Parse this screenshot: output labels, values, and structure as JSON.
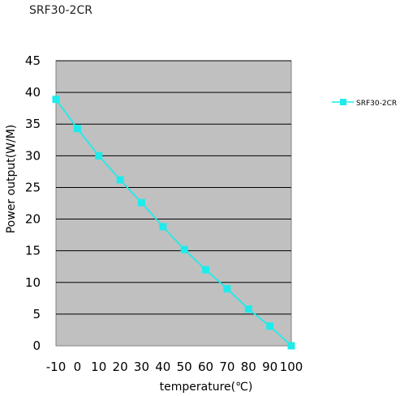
{
  "chart_data": {
    "type": "line",
    "title": "SRF30-2CR",
    "xlabel": "temperature(℃)",
    "ylabel": "Power output(W/M)",
    "x": [
      -10,
      0,
      10,
      20,
      30,
      40,
      50,
      60,
      70,
      80,
      90,
      100
    ],
    "xticks": [
      "-10",
      "0",
      "10",
      "20",
      "30",
      "40",
      "50",
      "60",
      "70",
      "80",
      "90",
      "100"
    ],
    "ylim": [
      0,
      45
    ],
    "yticks": [
      0,
      5,
      10,
      15,
      20,
      25,
      30,
      35,
      40,
      45
    ],
    "grid": true,
    "legend_position": "right",
    "series": [
      {
        "name": "SRF30-2CR",
        "color": "#1EEBEB",
        "marker": "square",
        "values": [
          38.9,
          34.3,
          30.0,
          26.2,
          22.6,
          18.8,
          15.2,
          12.0,
          9.0,
          5.8,
          3.1,
          0.0
        ]
      }
    ],
    "plot_background": "#C0C0C0",
    "grid_color": "#000000"
  }
}
